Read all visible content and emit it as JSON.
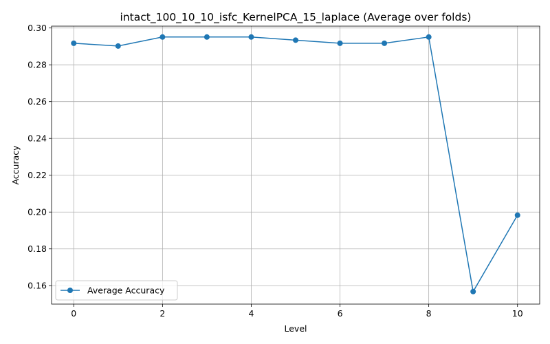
{
  "chart_data": {
    "type": "line",
    "title": "intact_100_10_10_isfc_KernelPCA_15_laplace (Average over folds)",
    "xlabel": "Level",
    "ylabel": "Accuracy",
    "xlim": [
      -0.5,
      10.5
    ],
    "ylim": [
      0.15,
      0.301
    ],
    "xticks": [
      0,
      2,
      4,
      6,
      8,
      10
    ],
    "yticks": [
      0.16,
      0.18,
      0.2,
      0.22,
      0.24,
      0.26,
      0.28,
      0.3
    ],
    "xtick_labels": [
      "0",
      "2",
      "4",
      "6",
      "8",
      "10"
    ],
    "ytick_labels": [
      "0.16",
      "0.18",
      "0.20",
      "0.22",
      "0.24",
      "0.26",
      "0.28",
      "0.30"
    ],
    "grid": true,
    "legend_position": "lower left",
    "series": [
      {
        "name": "Average Accuracy",
        "color": "#1f77b4",
        "marker": "circle",
        "x": [
          0,
          1,
          2,
          3,
          4,
          5,
          6,
          7,
          8,
          9,
          10
        ],
        "y": [
          0.2917,
          0.2902,
          0.2951,
          0.2951,
          0.2951,
          0.2934,
          0.2917,
          0.2917,
          0.2951,
          0.1568,
          0.1983
        ]
      }
    ]
  }
}
